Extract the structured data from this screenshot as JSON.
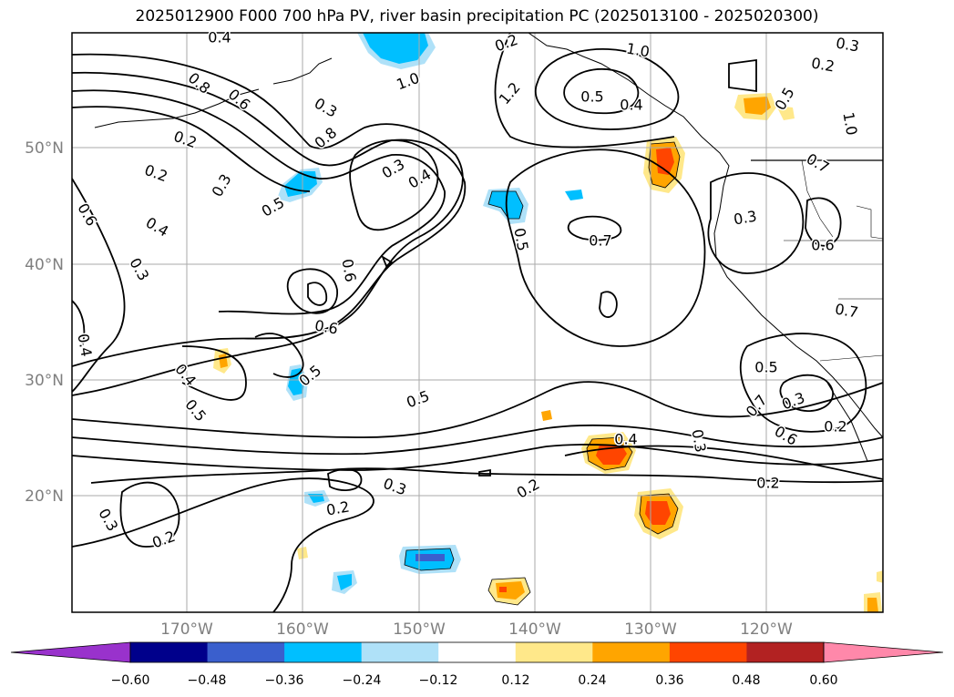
{
  "title": "2025012900 F000 700 hPa PV, river basin precipitation PC (2025013100 - 2025020300)",
  "lat_labels": [
    "50°N",
    "40°N",
    "30°N",
    "20°N"
  ],
  "lon_labels": [
    "170°W",
    "160°W",
    "150°W",
    "140°W",
    "130°W",
    "120°W"
  ],
  "colorbar": {
    "ticks": [
      "−0.60",
      "−0.48",
      "−0.36",
      "−0.24",
      "−0.12",
      "0.12",
      "0.24",
      "0.36",
      "0.48",
      "0.60"
    ],
    "colors": [
      "#9932cc",
      "#00008b",
      "#3a5fcd",
      "#00bfff",
      "#afe1f8",
      "#ffffff",
      "#ffe88a",
      "#ffa500",
      "#ff4500",
      "#b22222",
      "#ff88aa"
    ]
  },
  "contour_labels": [
    "0.4",
    "0.2",
    "0.3",
    "0.2",
    "0.5",
    "0.4",
    "0.3",
    "0.6",
    "0.8",
    "0.6",
    "0.4",
    "0.3",
    "0.8",
    "1.0",
    "0.2",
    "0.3",
    "0.4",
    "0.5",
    "0.7",
    "1.2",
    "1.0",
    "0.3",
    "0.2",
    "0.5",
    "0.4",
    "0.6",
    "0.6",
    "1.0",
    "0.5",
    "0.3",
    "0.6",
    "0.7",
    "0.7",
    "0.5",
    "0.4",
    "0.5",
    "0.5",
    "0.4",
    "0.3",
    "0.6",
    "0.5",
    "0.7",
    "0.3",
    "0.2",
    "0.2",
    "0.2",
    "0.3",
    "0.2",
    "0.3",
    "0.2"
  ]
}
